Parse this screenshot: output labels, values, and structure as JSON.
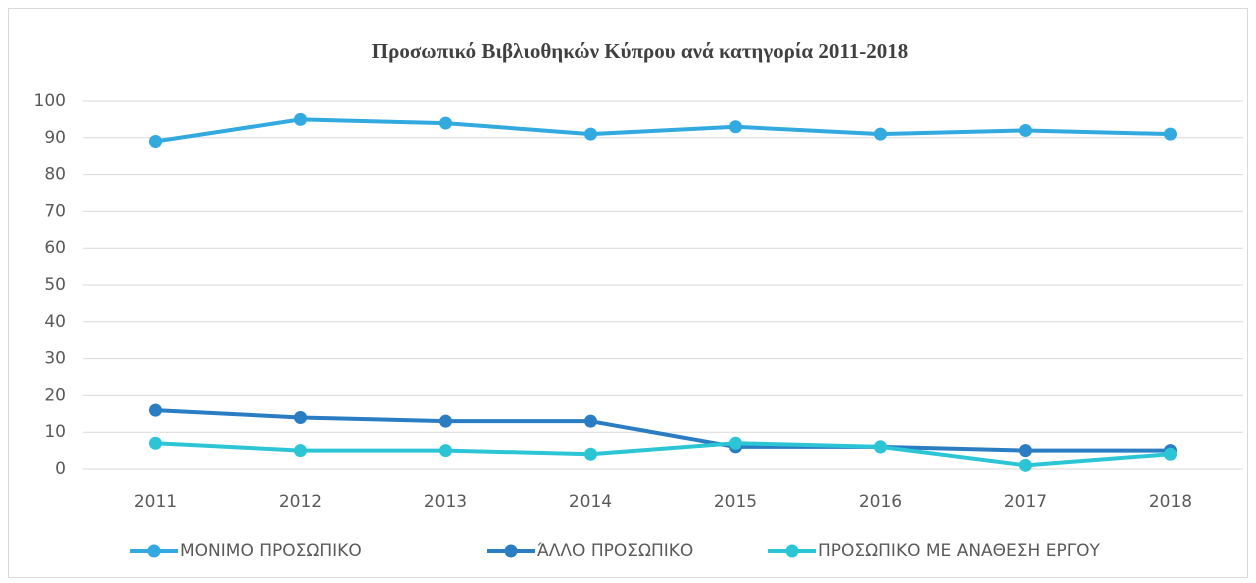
{
  "chart_data": {
    "type": "line",
    "title": "Προσωπικό Βιβλιοθηκών Κύπρου ανά κατηγορία 2011-2018",
    "categories": [
      "2011",
      "2012",
      "2013",
      "2014",
      "2015",
      "2016",
      "2017",
      "2018"
    ],
    "series": [
      {
        "name": "ΜΟΝΙΜΟ ΠΡΟΣΩΠΙΚΟ",
        "color": "#32a9df",
        "values": [
          89,
          95,
          94,
          91,
          93,
          91,
          92,
          91
        ]
      },
      {
        "name": "ΆΛΛΟ ΠΡΟΣΩΠΙΚΟ",
        "color": "#2a7cc3",
        "values": [
          16,
          14,
          13,
          13,
          6,
          6,
          5,
          5
        ]
      },
      {
        "name": "ΠΡΟΣΩΠΙΚΟ ΜΕ ΑΝΑΘΕΣΗ ΕΡΓΟΥ",
        "color": "#2cc5d6",
        "values": [
          7,
          5,
          5,
          4,
          7,
          6,
          1,
          4
        ]
      }
    ],
    "ylim": [
      0,
      100
    ],
    "yticks": [
      0,
      10,
      20,
      30,
      40,
      50,
      60,
      70,
      80,
      90,
      100
    ],
    "grid": true,
    "legend": "bottom"
  }
}
